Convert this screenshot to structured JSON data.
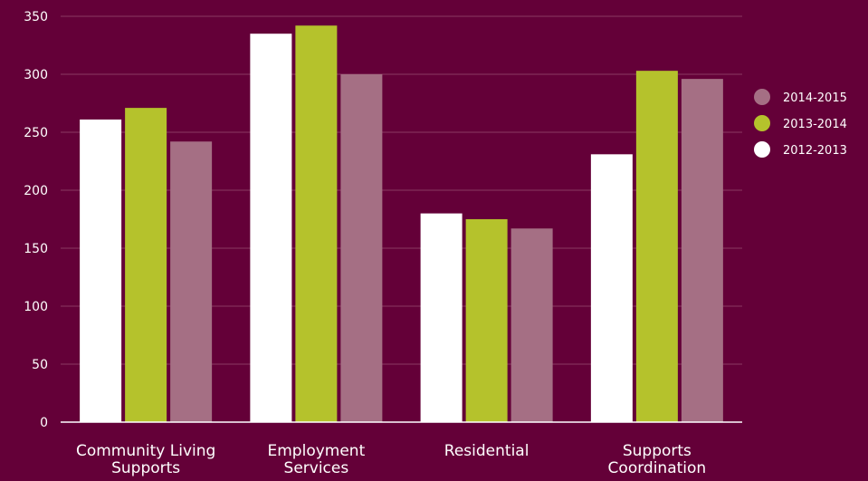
{
  "chart_data": {
    "type": "bar",
    "categories": [
      [
        "Community Living",
        "Supports"
      ],
      [
        "Employment",
        "Services"
      ],
      [
        "Residential"
      ],
      [
        "Supports",
        "Coordination"
      ]
    ],
    "series": [
      {
        "name": "2012-2013",
        "color": "#ffffff",
        "values": [
          261,
          335,
          180,
          231
        ]
      },
      {
        "name": "2013-2014",
        "color": "#b5c22c",
        "values": [
          271,
          342,
          175,
          303
        ]
      },
      {
        "name": "2014-2015",
        "color": "#a56f84",
        "values": [
          242,
          300,
          167,
          296
        ]
      }
    ],
    "legend_order": [
      2,
      1,
      0
    ],
    "legend_position": "right",
    "ylim": [
      0,
      350
    ],
    "yticks": [
      0,
      50,
      100,
      150,
      200,
      250,
      300,
      350
    ],
    "grid": true,
    "colors": {
      "background": "#640038",
      "grid": "#8a3a62",
      "axis": "#ffffff"
    }
  }
}
